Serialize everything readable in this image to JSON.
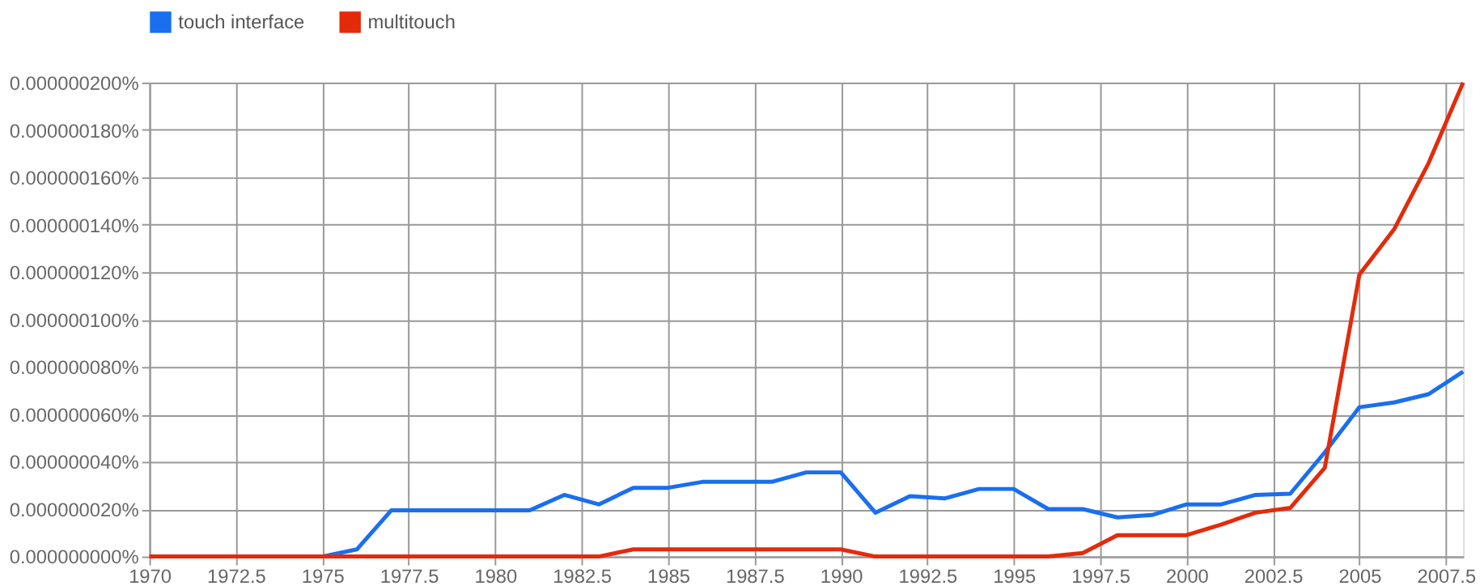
{
  "chart_data": {
    "type": "line",
    "x": [
      1970,
      1971,
      1972,
      1973,
      1974,
      1975,
      1976,
      1977,
      1978,
      1979,
      1980,
      1981,
      1982,
      1983,
      1984,
      1985,
      1986,
      1987,
      1988,
      1989,
      1990,
      1991,
      1992,
      1993,
      1994,
      1995,
      1996,
      1997,
      1998,
      1999,
      2000,
      2001,
      2002,
      2003,
      2004,
      2005,
      2006,
      2007,
      2008
    ],
    "series": [
      {
        "name": "touch interface",
        "color": "#1a6ef0",
        "values": [
          null,
          null,
          null,
          null,
          null,
          0,
          3e-09,
          1.95e-08,
          1.95e-08,
          1.95e-08,
          1.95e-08,
          1.95e-08,
          2.6e-08,
          2.2e-08,
          2.9e-08,
          2.9e-08,
          3.15e-08,
          3.15e-08,
          3.15e-08,
          3.55e-08,
          3.55e-08,
          1.85e-08,
          2.55e-08,
          2.45e-08,
          2.85e-08,
          2.85e-08,
          2e-08,
          2e-08,
          1.65e-08,
          1.75e-08,
          2.2e-08,
          2.2e-08,
          2.6e-08,
          2.65e-08,
          4.4e-08,
          6.3e-08,
          6.5e-08,
          6.85e-08,
          7.8e-08
        ]
      },
      {
        "name": "multitouch",
        "color": "#e32b0c",
        "values": [
          0,
          0,
          0,
          0,
          0,
          0,
          0,
          0,
          0,
          0,
          0,
          0,
          0,
          0,
          3e-09,
          3e-09,
          3e-09,
          3e-09,
          3e-09,
          3e-09,
          3e-09,
          0,
          0,
          0,
          0,
          0,
          0,
          1.5e-09,
          9e-09,
          9e-09,
          9e-09,
          1.35e-08,
          1.85e-08,
          2.05e-08,
          3.75e-08,
          1.19e-07,
          1.38e-07,
          1.66e-07,
          2e-07
        ]
      }
    ],
    "xlim": [
      1970,
      2008
    ],
    "xticks": [
      1970,
      1972.5,
      1975,
      1977.5,
      1980,
      1982.5,
      1985,
      1987.5,
      1990,
      1992.5,
      1995,
      1997.5,
      2000,
      2002.5,
      2005,
      2007.5
    ],
    "ylim": [
      0,
      2e-07
    ],
    "yticks": [
      {
        "value": 0,
        "label": "0.000000000%"
      },
      {
        "value": 2e-08,
        "label": "0.000000020%"
      },
      {
        "value": 4e-08,
        "label": "0.000000040%"
      },
      {
        "value": 6e-08,
        "label": "0.000000060%"
      },
      {
        "value": 8e-08,
        "label": "0.000000080%"
      },
      {
        "value": 1e-07,
        "label": "0.000000100%"
      },
      {
        "value": 1.2e-07,
        "label": "0.000000120%"
      },
      {
        "value": 1.4e-07,
        "label": "0.000000140%"
      },
      {
        "value": 1.6e-07,
        "label": "0.000000160%"
      },
      {
        "value": 1.8e-07,
        "label": "0.000000180%"
      },
      {
        "value": 2e-07,
        "label": "0.000000200%"
      }
    ],
    "grid": true,
    "legend": "top"
  }
}
